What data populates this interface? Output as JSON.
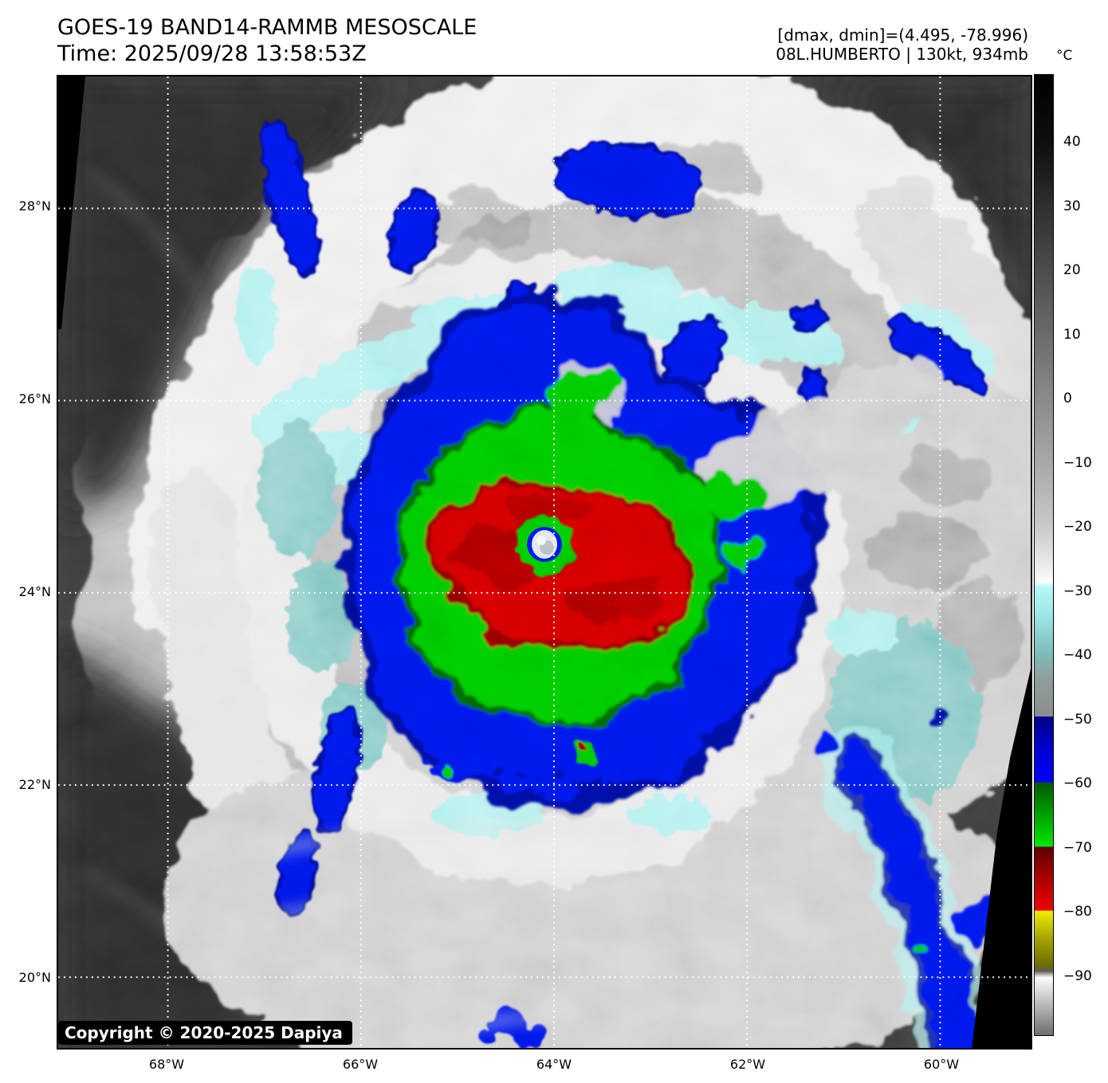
{
  "header": {
    "title": "GOES-19 BAND14-RAMMB MESOSCALE",
    "time": "Time: 2025/09/28 13:58:53Z",
    "range_info": "[dmax, dmin]=(4.495, -78.996)",
    "storm_info": "08L.HUMBERTO | 130kt, 934mb"
  },
  "colorbar": {
    "unit_label": "°C",
    "ticks": [
      40,
      30,
      20,
      10,
      0,
      -10,
      -20,
      -30,
      -40,
      -50,
      -60,
      -70,
      -80,
      -90
    ],
    "gradient": [
      [
        0.0,
        "#000000"
      ],
      [
        0.071,
        "#0e0e0e"
      ],
      [
        0.137,
        "#2f2f2f"
      ],
      [
        0.204,
        "#4d4d4d"
      ],
      [
        0.271,
        "#6b6b6b"
      ],
      [
        0.338,
        "#8a8a8a"
      ],
      [
        0.404,
        "#a8a8a8"
      ],
      [
        0.471,
        "#c9c9c9"
      ],
      [
        0.522,
        "#f5f5f5"
      ],
      [
        0.528,
        "#ffffff"
      ],
      [
        0.533,
        "#b8f6f4"
      ],
      [
        0.56,
        "#9fe9e7"
      ],
      [
        0.604,
        "#7dbab8"
      ],
      [
        0.63,
        "#8d9e9b"
      ],
      [
        0.668,
        "#8d8d8d"
      ],
      [
        0.6685,
        "#000089"
      ],
      [
        0.702,
        "#0000cf"
      ],
      [
        0.7365,
        "#0000ff"
      ],
      [
        0.737,
        "#005a00"
      ],
      [
        0.77,
        "#00a000"
      ],
      [
        0.8035,
        "#00e800"
      ],
      [
        0.804,
        "#5c0000"
      ],
      [
        0.835,
        "#a80000"
      ],
      [
        0.87,
        "#ef0000"
      ],
      [
        0.8705,
        "#efef00"
      ],
      [
        0.9,
        "#a3a300"
      ],
      [
        0.928,
        "#6c6c00"
      ],
      [
        0.9331,
        "#5a5a5a"
      ],
      [
        0.94,
        "#fbfbfb"
      ],
      [
        1.0,
        "#6e6e6e"
      ]
    ]
  },
  "map": {
    "lat_labels": [
      "28°N",
      "26°N",
      "24°N",
      "22°N",
      "20°N"
    ],
    "lon_labels": [
      "68°W",
      "66°W",
      "64°W",
      "62°W",
      "60°W"
    ],
    "copyright": "Copyright © 2020-2025 Dapiya"
  },
  "palette": {
    "bg_dark": "#3a3a3a",
    "bg_darker": "#2b2b2b",
    "cloud_gray": "#b9b9b9",
    "cloud_mid": "#cccccc",
    "cloud_white": "#ececec",
    "cyan": "#a9f1ef",
    "cyan_deep": "#7ac6c2",
    "storm_blue": "#0013e8",
    "storm_navy": "#000a96",
    "storm_green": "#00c400",
    "storm_green_dark": "#005f00",
    "storm_red": "#cf0202",
    "storm_red_dark": "#840000",
    "eye_gray": "#dde2e6",
    "grid_white": "#ffffff",
    "text_black": "#000000"
  }
}
